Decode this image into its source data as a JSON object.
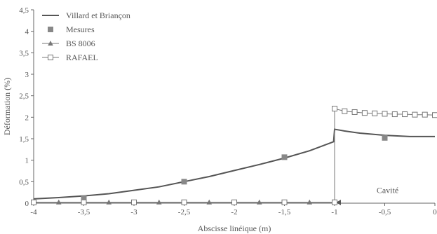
{
  "chart_data": {
    "type": "line",
    "title": "",
    "xlabel": "Abscisse linéique (m)",
    "ylabel": "Déformation (%)",
    "xlim": [
      -4,
      0
    ],
    "ylim": [
      0,
      4.5
    ],
    "x_ticks": [
      -4,
      -3.5,
      -3,
      -2.5,
      -2,
      -1.5,
      -1,
      -0.5,
      0
    ],
    "x_tick_labels": [
      "-4",
      "-3,5",
      "-3",
      "-2,5",
      "-2",
      "-1,5",
      "-1",
      "-0,5",
      "0"
    ],
    "y_ticks": [
      0,
      0.5,
      1,
      1.5,
      2,
      2.5,
      3,
      3.5,
      4,
      4.5
    ],
    "y_tick_labels": [
      "0",
      "0,5",
      "1",
      "1,5",
      "2",
      "2,5",
      "3",
      "3,5",
      "4",
      "4,5"
    ],
    "grid": false,
    "legend_position": "top-left",
    "series": [
      {
        "name": "Villard et Briançon",
        "marker": "line",
        "color": "#555555",
        "x": [
          -4,
          -3.75,
          -3.5,
          -3.25,
          -3,
          -2.75,
          -2.5,
          -2.25,
          -2,
          -1.75,
          -1.5,
          -1.25,
          -1.01,
          -1,
          -0.95,
          -0.9,
          -0.75,
          -0.5,
          -0.25,
          0
        ],
        "y": [
          0.1,
          0.13,
          0.17,
          0.22,
          0.3,
          0.38,
          0.5,
          0.62,
          0.76,
          0.9,
          1.05,
          1.22,
          1.43,
          1.72,
          1.7,
          1.68,
          1.63,
          1.58,
          1.55,
          1.55
        ]
      },
      {
        "name": "Mesures",
        "marker": "square",
        "color": "#888888",
        "x": [
          -3.5,
          -2.5,
          -1.5,
          -0.5
        ],
        "y": [
          0.12,
          0.5,
          1.07,
          1.52
        ]
      },
      {
        "name": "BS 8006",
        "marker": "triangle",
        "color": "#777777",
        "x": [
          -4,
          -3.75,
          -3.5,
          -3.25,
          -3,
          -2.75,
          -2.5,
          -2.25,
          -2,
          -1.75,
          -1.5,
          -1.25,
          -1
        ],
        "y": [
          0.02,
          0.02,
          0.02,
          0.02,
          0.02,
          0.02,
          0.02,
          0.02,
          0.02,
          0.02,
          0.02,
          0.02,
          0.02
        ]
      },
      {
        "name": "RAFAEL",
        "marker": "open-square",
        "color": "#777777",
        "x": [
          -4,
          -3.5,
          -3,
          -2.5,
          -2,
          -1.5,
          -1,
          -1,
          -0.9,
          -0.8,
          -0.7,
          -0.6,
          -0.5,
          -0.4,
          -0.3,
          -0.2,
          -0.1,
          0
        ],
        "y": [
          0.02,
          0.02,
          0.02,
          0.02,
          0.02,
          0.02,
          0.02,
          2.2,
          2.14,
          2.12,
          2.1,
          2.09,
          2.08,
          2.07,
          2.07,
          2.06,
          2.06,
          2.05
        ]
      }
    ],
    "annotations": [
      {
        "text": "Cavité",
        "x": -0.5,
        "y": 0.3
      }
    ],
    "cavity_boundary_x": -1
  }
}
